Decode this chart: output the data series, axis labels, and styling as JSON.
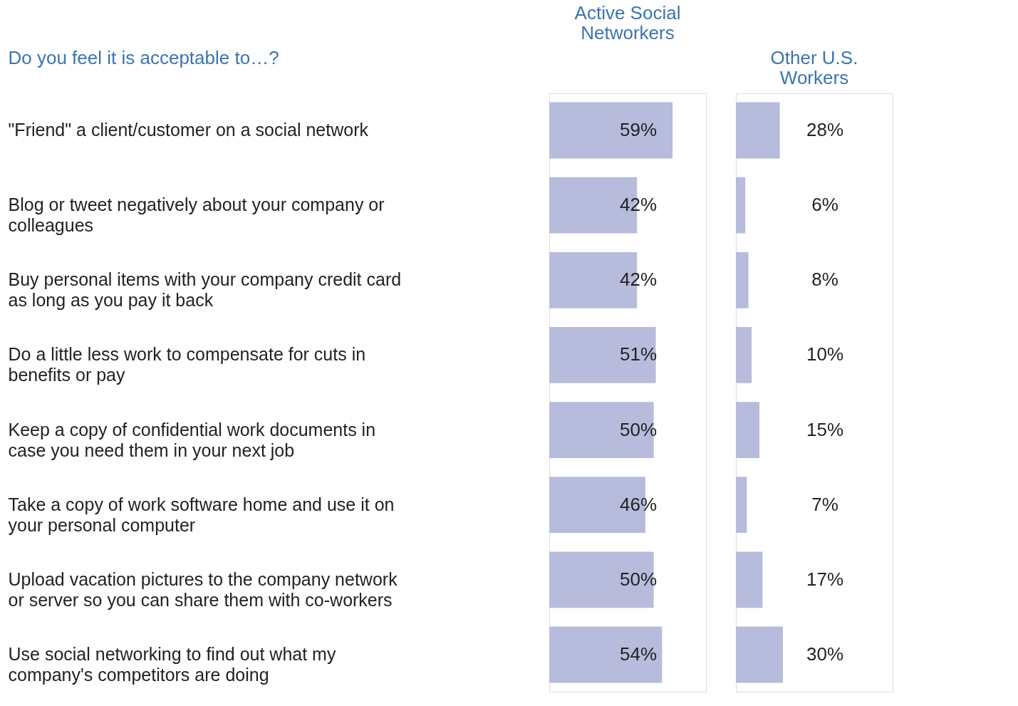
{
  "chart_data": [
    {
      "type": "bar",
      "orientation": "horizontal",
      "title": "Active Social Networkers",
      "ylabel": "Do you feel it is acceptable to…?",
      "categories": [
        "\"Friend\" a client/customer on a social network",
        "Blog or tweet negatively about your company or colleagues",
        "Buy personal items with your company credit card as long as you pay it back",
        "Do a little less work to compensate for cuts in benefits or pay",
        "Keep a copy of confidential work documents in case you need them in your next job",
        "Take a copy of work software home and use it on your personal computer",
        "Upload vacation pictures to the company network or server so you can share them with co-workers",
        "Use social networking to find out what my company's competitors are doing"
      ],
      "values": [
        59,
        42,
        42,
        51,
        50,
        46,
        50,
        54
      ],
      "value_labels": [
        "59%",
        "42%",
        "42%",
        "51%",
        "50%",
        "46%",
        "50%",
        "54%"
      ],
      "color": "#b7bbdc",
      "xlim": [
        0,
        75
      ],
      "tick_labels": "y"
    },
    {
      "type": "bar",
      "orientation": "horizontal",
      "title": "Other U.S. Workers",
      "categories": [
        null,
        null,
        null,
        null,
        null,
        null,
        null,
        null
      ],
      "values": [
        28,
        6,
        8,
        10,
        15,
        7,
        17,
        30
      ],
      "value_labels": [
        "28%",
        "6%",
        "8%",
        "10%",
        "15%",
        "7%",
        "17%",
        "30%"
      ],
      "color": "#b7bbdc",
      "xlim": [
        0,
        100
      ],
      "tick_labels": false
    }
  ]
}
